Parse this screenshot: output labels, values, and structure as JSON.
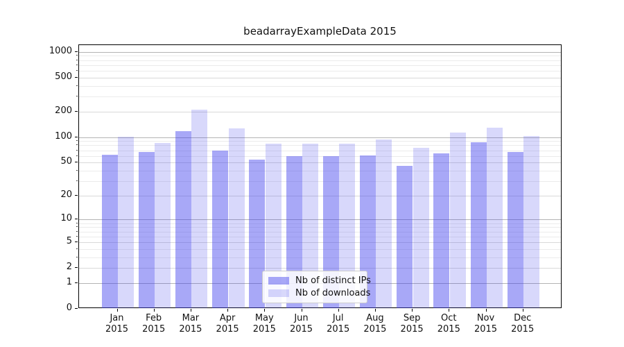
{
  "title": "beadarrayExampleData 2015",
  "legend": {
    "items": [
      {
        "label": "Nb of distinct IPs",
        "color": "rgba(62,62,237,0.45)"
      },
      {
        "label": "Nb of downloads",
        "color": "rgba(62,62,237,0.20)"
      }
    ]
  },
  "axes": {
    "y_tick_labels": [
      "0",
      "1",
      "2",
      "5",
      "10",
      "20",
      "50",
      "100",
      "200",
      "500",
      "1000"
    ],
    "x_year": "2015"
  },
  "colors": {
    "bar_dark": "rgba(62,62,237,0.45)",
    "bar_light": "rgba(62,62,237,0.20)",
    "grid_major": "#b3b3b3",
    "grid_labeled": "#d9d9d9",
    "grid_minor": "#ebebeb",
    "spine": "#000000"
  },
  "chart_data": {
    "type": "bar",
    "title": "beadarrayExampleData 2015",
    "categories": [
      "Jan 2015",
      "Feb 2015",
      "Mar 2015",
      "Apr 2015",
      "May 2015",
      "Jun 2015",
      "Jul 2015",
      "Aug 2015",
      "Sep 2015",
      "Oct 2015",
      "Nov 2015",
      "Dec 2015"
    ],
    "months": [
      "Jan",
      "Feb",
      "Mar",
      "Apr",
      "May",
      "Jun",
      "Jul",
      "Aug",
      "Sep",
      "Oct",
      "Nov",
      "Dec"
    ],
    "year": "2015",
    "series": [
      {
        "name": "Nb of distinct IPs",
        "values": [
          62,
          67,
          118,
          70,
          54,
          60,
          60,
          61,
          46,
          64,
          87,
          67
        ]
      },
      {
        "name": "Nb of downloads",
        "values": [
          102,
          86,
          210,
          127,
          84,
          84,
          84,
          94,
          75,
          113,
          129,
          104
        ]
      }
    ],
    "xlabel": "",
    "ylabel": "",
    "yscale": "log1p",
    "ylim": [
      0,
      1000
    ],
    "y_ticks": [
      0,
      1,
      2,
      5,
      10,
      20,
      50,
      100,
      200,
      500,
      1000
    ],
    "y_decade_ticks": [
      1,
      10,
      100,
      1000
    ],
    "y_minor_gridlines": [
      3,
      4,
      6,
      7,
      8,
      9,
      30,
      40,
      60,
      70,
      80,
      90,
      300,
      400,
      600,
      700,
      800,
      900
    ],
    "grid": true,
    "legend_position": "lower center"
  }
}
